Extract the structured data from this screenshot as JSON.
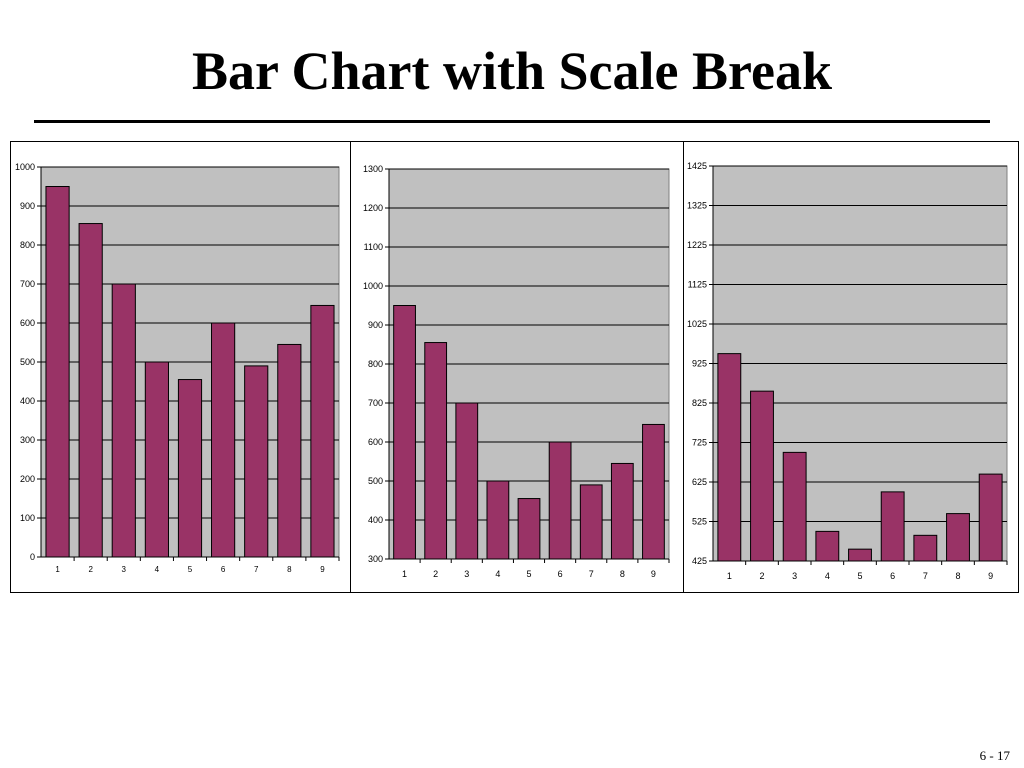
{
  "slide": {
    "title": "Bar Chart with Scale Break",
    "page_number": "6 - 17"
  },
  "colors": {
    "bar": "#993366",
    "plot_bg": "#c0c0c0",
    "gridline": "#000000"
  },
  "chart_data": [
    {
      "type": "bar",
      "categories": [
        "1",
        "2",
        "3",
        "4",
        "5",
        "6",
        "7",
        "8",
        "9"
      ],
      "values": [
        950,
        855,
        700,
        500,
        455,
        600,
        490,
        545,
        645
      ],
      "ylim": [
        0,
        1000
      ],
      "yticks": [
        0,
        100,
        200,
        300,
        400,
        500,
        600,
        700,
        800,
        900,
        1000
      ],
      "grid": true,
      "legend": "none"
    },
    {
      "type": "bar",
      "categories": [
        "1",
        "2",
        "3",
        "4",
        "5",
        "6",
        "7",
        "8",
        "9"
      ],
      "values": [
        950,
        855,
        700,
        500,
        455,
        600,
        490,
        545,
        645
      ],
      "ylim": [
        300,
        1300
      ],
      "yticks": [
        300,
        400,
        500,
        600,
        700,
        800,
        900,
        1000,
        1100,
        1200,
        1300
      ],
      "grid": true,
      "legend": "none"
    },
    {
      "type": "bar",
      "categories": [
        "1",
        "2",
        "3",
        "4",
        "5",
        "6",
        "7",
        "8",
        "9"
      ],
      "values": [
        950,
        855,
        700,
        500,
        455,
        600,
        490,
        545,
        645
      ],
      "ylim": [
        425,
        1425
      ],
      "yticks": [
        425,
        525,
        625,
        725,
        825,
        925,
        1025,
        1125,
        1225,
        1325,
        1425
      ],
      "grid": true,
      "legend": "none"
    }
  ]
}
